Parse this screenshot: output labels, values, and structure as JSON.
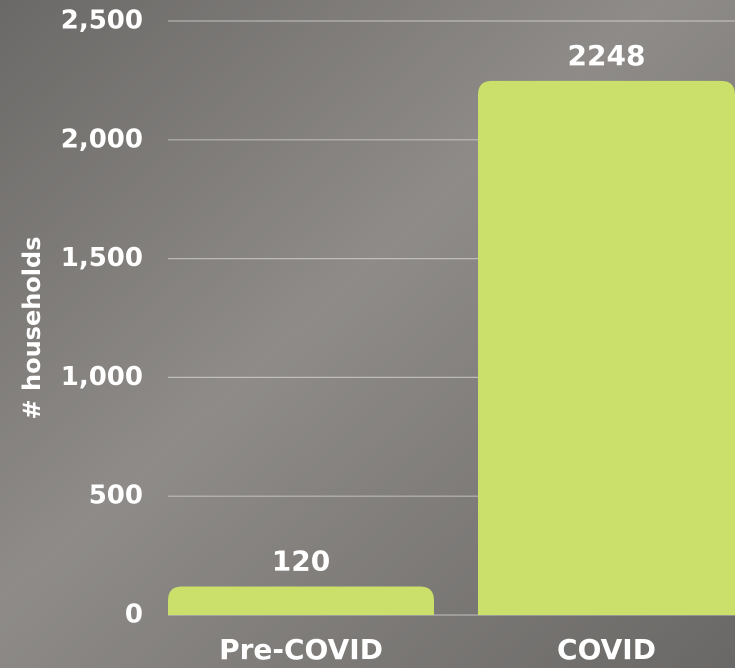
{
  "chart_data": {
    "type": "bar",
    "y_label": "# households",
    "categories": [
      "Pre-COVID",
      "COVID"
    ],
    "values": [
      120,
      2248
    ],
    "color": "#cbe06a",
    "ylim": [
      0,
      2500
    ],
    "yticks": [
      0,
      500,
      {
        "value": 1000,
        "label": "1,000"
      },
      {
        "value": 1500,
        "label": "1,500"
      },
      {
        "value": 2000,
        "label": "2,000"
      },
      {
        "value": 2500,
        "label": "2,500"
      }
    ],
    "grid": true
  }
}
